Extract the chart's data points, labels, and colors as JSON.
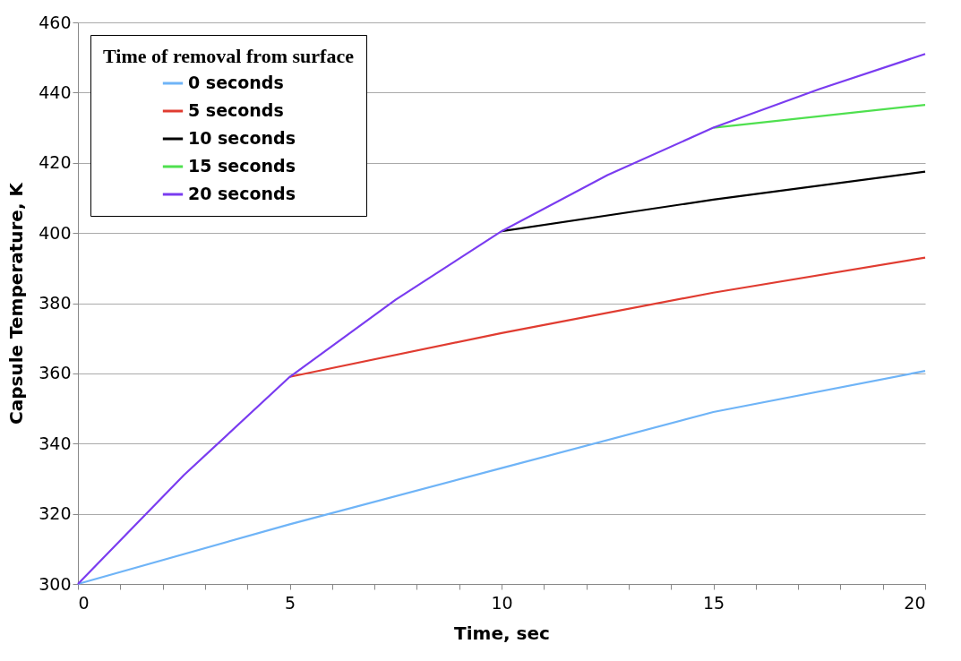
{
  "chart_data": {
    "type": "line",
    "xlabel": "Time, sec",
    "ylabel": "Capsule Temperature, K",
    "legend_title": "Time of removal from surface",
    "legend": "top left",
    "grid": "y",
    "xlim": [
      0,
      20
    ],
    "ylim": [
      300,
      460
    ],
    "xticks": [
      0,
      {
        "value": 1,
        "label": null
      },
      {
        "value": 2,
        "label": null
      },
      {
        "value": 3,
        "label": null
      },
      {
        "value": 4,
        "label": null
      },
      5,
      {
        "value": 6,
        "label": null
      },
      {
        "value": 7,
        "label": null
      },
      {
        "value": 8,
        "label": null
      },
      {
        "value": 9,
        "label": null
      },
      10,
      {
        "value": 11,
        "label": null
      },
      {
        "value": 12,
        "label": null
      },
      {
        "value": 13,
        "label": null
      },
      {
        "value": 14,
        "label": null
      },
      15,
      {
        "value": 16,
        "label": null
      },
      {
        "value": 17,
        "label": null
      },
      {
        "value": 18,
        "label": null
      },
      {
        "value": 19,
        "label": null
      },
      20
    ],
    "yticks": [
      300,
      320,
      340,
      360,
      380,
      400,
      420,
      440,
      460
    ],
    "series": [
      {
        "name": "0 seconds",
        "color": "#6fb4f7",
        "x": [
          0,
          5,
          10,
          15,
          20
        ],
        "values": [
          300,
          317,
          333,
          349,
          360.7
        ]
      },
      {
        "name": "5 seconds",
        "color": "#e03c31",
        "x": [
          5,
          10,
          15,
          20
        ],
        "values": [
          359,
          371.5,
          383,
          393
        ]
      },
      {
        "name": "10 seconds",
        "color": "#000000",
        "x": [
          10,
          15,
          20
        ],
        "values": [
          400.5,
          409.5,
          417.5
        ]
      },
      {
        "name": "15 seconds",
        "color": "#4fe04f",
        "x": [
          15,
          20
        ],
        "values": [
          430,
          436.5
        ]
      },
      {
        "name": "20 seconds",
        "color": "#7a3cf0",
        "x": [
          0,
          2.5,
          5,
          7.5,
          10,
          12.5,
          15,
          17.5,
          20
        ],
        "values": [
          300,
          331,
          359,
          381,
          400.5,
          416.5,
          430,
          441,
          451
        ]
      }
    ]
  }
}
